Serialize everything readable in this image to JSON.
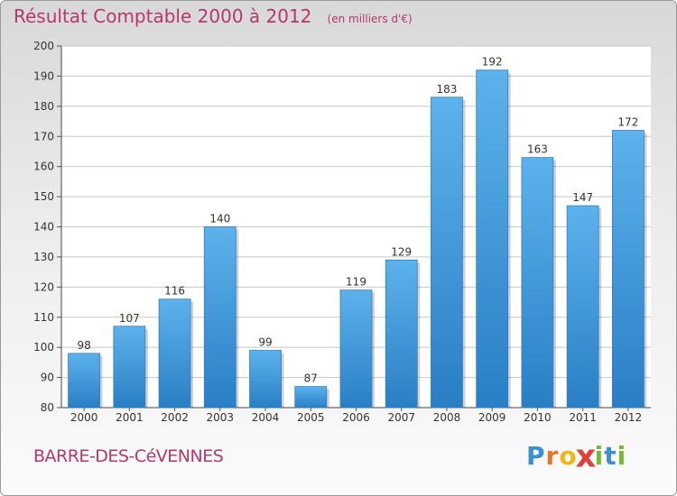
{
  "chart_data": {
    "type": "bar",
    "title": "Résultat Comptable 2000 à 2012",
    "subtitle": "(en milliers d'€)",
    "categories": [
      "2000",
      "2001",
      "2002",
      "2003",
      "2004",
      "2005",
      "2006",
      "2007",
      "2008",
      "2009",
      "2010",
      "2011",
      "2012"
    ],
    "values": [
      98,
      107,
      116,
      140,
      99,
      87,
      119,
      129,
      183,
      192,
      163,
      147,
      172
    ],
    "ylim": [
      80,
      200
    ],
    "yticks": [
      80,
      90,
      100,
      110,
      120,
      130,
      140,
      150,
      160,
      170,
      180,
      190,
      200
    ],
    "xlabel": "",
    "ylabel": "",
    "grid": true
  },
  "footer": {
    "commune": "BARRE-DES-CéVENNES",
    "brand_letters": [
      "P",
      "r",
      "o",
      "x",
      "i",
      "t",
      "i"
    ]
  },
  "colors": {
    "accent": "#b5376d",
    "bar_light": "#5db2ec",
    "bar_dark": "#2a7ec4",
    "brand": [
      "#3c8fd0",
      "#e8742c",
      "#f1b51c",
      "#e23e3a",
      "#7ab833",
      "#3c8fd0",
      "#7ab833"
    ]
  }
}
